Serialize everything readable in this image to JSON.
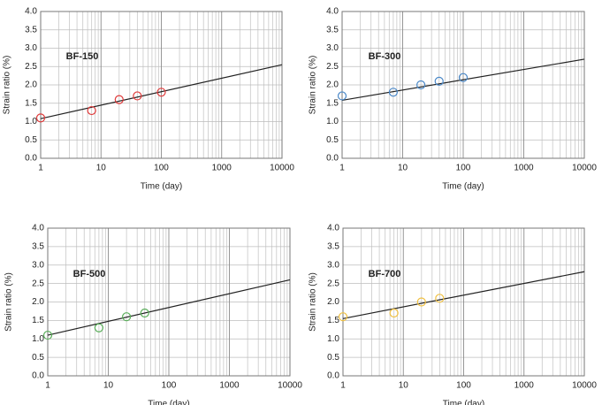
{
  "chart_data": [
    {
      "type": "scatter",
      "title": "BF-150",
      "x_label": "Time (day)",
      "y_label": "Strain ratio (%)",
      "log_x": true,
      "grid": true,
      "x": [
        1,
        7,
        20,
        40,
        100
      ],
      "series": [
        {
          "color": "#e03a3a",
          "values": [
            1.1,
            1.3,
            1.6,
            1.7,
            1.8
          ]
        }
      ],
      "trend": {
        "color": "#222222",
        "x": [
          1,
          10000
        ],
        "values": [
          1.08,
          2.55
        ]
      },
      "xlim": [
        1,
        10000
      ],
      "xticks": [
        1,
        10,
        100,
        1000,
        10000
      ],
      "ylim": [
        0,
        4
      ],
      "yticks": [
        {
          "value": 0,
          "label": "0.0"
        },
        {
          "value": 0.5,
          "label": "0.5"
        },
        {
          "value": 1,
          "label": "1.0"
        },
        {
          "value": 1.5,
          "label": "1.5"
        },
        {
          "value": 2,
          "label": "2.0"
        },
        {
          "value": 2.5,
          "label": "2.5"
        },
        {
          "value": 3,
          "label": "3.0"
        },
        {
          "value": 3.5,
          "label": "3.5"
        },
        {
          "value": 4,
          "label": "4.0"
        }
      ]
    },
    {
      "type": "scatter",
      "title": "BF-300",
      "x_label": "Time (day)",
      "y_label": "Strain ratio (%)",
      "log_x": true,
      "grid": true,
      "x": [
        1,
        7,
        20,
        40,
        100
      ],
      "series": [
        {
          "color": "#4a88c8",
          "values": [
            1.7,
            1.8,
            2.0,
            2.1,
            2.2
          ]
        }
      ],
      "trend": {
        "color": "#222222",
        "x": [
          1,
          10000
        ],
        "values": [
          1.58,
          2.7
        ]
      },
      "xlim": [
        1,
        10000
      ],
      "xticks": [
        1,
        10,
        100,
        1000,
        10000
      ],
      "ylim": [
        0,
        4
      ],
      "yticks": [
        {
          "value": 0,
          "label": "0.0"
        },
        {
          "value": 0.5,
          "label": "0.5"
        },
        {
          "value": 1,
          "label": "1.0"
        },
        {
          "value": 1.5,
          "label": "1.5"
        },
        {
          "value": 2,
          "label": "2.0"
        },
        {
          "value": 2.5,
          "label": "2.5"
        },
        {
          "value": 3,
          "label": "3.0"
        },
        {
          "value": 3.5,
          "label": "3.5"
        },
        {
          "value": 4,
          "label": "4.0"
        }
      ]
    },
    {
      "type": "scatter",
      "title": "BF-500",
      "x_label": "Time (day)",
      "y_label": "Strain ratio (%)",
      "log_x": true,
      "grid": true,
      "x": [
        1,
        7,
        20,
        40
      ],
      "series": [
        {
          "color": "#5aae5a",
          "values": [
            1.1,
            1.3,
            1.6,
            1.7
          ]
        }
      ],
      "trend": {
        "color": "#222222",
        "x": [
          1,
          10000
        ],
        "values": [
          1.1,
          2.6
        ]
      },
      "xlim": [
        1,
        10000
      ],
      "xticks": [
        1,
        10,
        100,
        1000,
        10000
      ],
      "ylim": [
        0,
        4
      ],
      "yticks": [
        {
          "value": 0,
          "label": "0.0"
        },
        {
          "value": 0.5,
          "label": "0.5"
        },
        {
          "value": 1,
          "label": "1.0"
        },
        {
          "value": 1.5,
          "label": "1.5"
        },
        {
          "value": 2,
          "label": "2.0"
        },
        {
          "value": 2.5,
          "label": "2.5"
        },
        {
          "value": 3,
          "label": "3.0"
        },
        {
          "value": 3.5,
          "label": "3.5"
        },
        {
          "value": 4,
          "label": "4.0"
        }
      ]
    },
    {
      "type": "scatter",
      "title": "BF-700",
      "x_label": "Time (day)",
      "y_label": "Strain ratio (%)",
      "log_x": true,
      "grid": true,
      "x": [
        1,
        7,
        20,
        40
      ],
      "series": [
        {
          "color": "#f0c040",
          "values": [
            1.6,
            1.7,
            2.0,
            2.1
          ]
        }
      ],
      "trend": {
        "color": "#222222",
        "x": [
          1,
          10000
        ],
        "values": [
          1.55,
          2.82
        ]
      },
      "xlim": [
        1,
        10000
      ],
      "xticks": [
        1,
        10,
        100,
        1000,
        10000
      ],
      "ylim": [
        0,
        4
      ],
      "yticks": [
        {
          "value": 0,
          "label": "0.0"
        },
        {
          "value": 0.5,
          "label": "0.5"
        },
        {
          "value": 1,
          "label": "1.0"
        },
        {
          "value": 1.5,
          "label": "1.5"
        },
        {
          "value": 2,
          "label": "2.0"
        },
        {
          "value": 2.5,
          "label": "2.5"
        },
        {
          "value": 3,
          "label": "3.0"
        },
        {
          "value": 3.5,
          "label": "3.5"
        },
        {
          "value": 4,
          "label": "4.0"
        }
      ]
    }
  ]
}
